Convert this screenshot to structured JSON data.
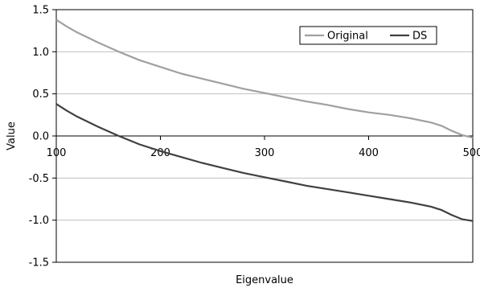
{
  "chart_data": {
    "type": "line",
    "title": "",
    "xlabel": "Eigenvalue",
    "ylabel": "Value",
    "xlim": [
      100,
      500
    ],
    "ylim": [
      -1.5,
      1.5
    ],
    "x_ticks": [
      100,
      200,
      300,
      400,
      500
    ],
    "x_tick_labels": [
      "100",
      "200",
      "300",
      "400",
      "500"
    ],
    "y_ticks": [
      1.5,
      1.0,
      0.5,
      0.0,
      -0.5,
      -1.0,
      -1.5
    ],
    "y_tick_labels": [
      "1.5",
      "1.0",
      "0.5",
      "0.0",
      "-0.5",
      "-1.0",
      "-1.5"
    ],
    "grid": "horizontal",
    "legend": "top-right",
    "series": [
      {
        "name": "Original",
        "color": "#a0a0a0",
        "x": [
          100,
          110,
          120,
          140,
          160,
          180,
          200,
          220,
          240,
          260,
          280,
          300,
          320,
          340,
          360,
          380,
          400,
          420,
          440,
          460,
          470,
          480,
          490,
          500
        ],
        "y": [
          1.38,
          1.3,
          1.23,
          1.11,
          1.0,
          0.9,
          0.82,
          0.74,
          0.68,
          0.62,
          0.56,
          0.51,
          0.46,
          0.41,
          0.37,
          0.32,
          0.28,
          0.25,
          0.21,
          0.16,
          0.12,
          0.06,
          0.01,
          -0.02
        ]
      },
      {
        "name": "DS",
        "color": "#404040",
        "x": [
          100,
          110,
          120,
          140,
          160,
          180,
          200,
          220,
          240,
          260,
          280,
          300,
          320,
          340,
          360,
          380,
          400,
          420,
          440,
          460,
          470,
          480,
          490,
          500
        ],
        "y": [
          0.38,
          0.3,
          0.23,
          0.11,
          0.0,
          -0.1,
          -0.18,
          -0.25,
          -0.32,
          -0.38,
          -0.44,
          -0.49,
          -0.54,
          -0.59,
          -0.63,
          -0.67,
          -0.71,
          -0.75,
          -0.79,
          -0.84,
          -0.88,
          -0.94,
          -0.99,
          -1.01
        ]
      }
    ]
  }
}
